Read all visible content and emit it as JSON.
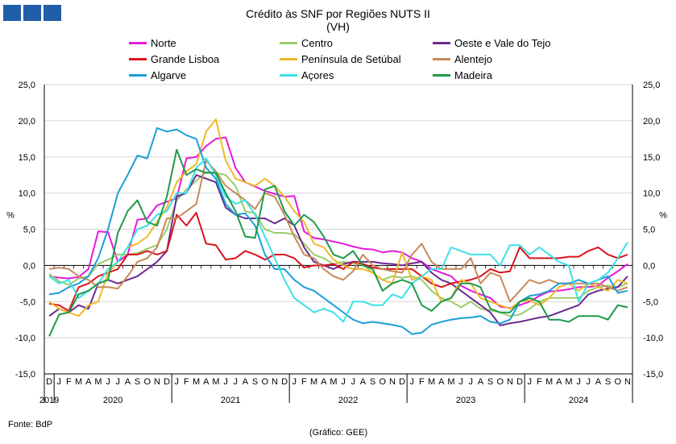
{
  "header": {
    "title": "Crédito às SNF por Regiões NUTS II",
    "subtitle": "(VH)"
  },
  "footer": {
    "source": "Fonte: BdP",
    "credit": "(Gráfico: GEE)"
  },
  "colors": {
    "logo": "#1f5fa8"
  },
  "chart_data": {
    "type": "line",
    "ylabel_left": "%",
    "ylabel_right": "%",
    "ylim": [
      -15,
      25
    ],
    "yticks": [
      -15,
      -10,
      -5,
      0,
      5,
      10,
      15,
      20,
      25
    ],
    "ytick_labels": [
      "-15,0",
      "-10,0",
      "-5,0",
      "0,0",
      "5,0",
      "10,0",
      "15,0",
      "20,0",
      "25,0"
    ],
    "grid": true,
    "legend_position": "top",
    "month_labels": [
      "D",
      "J",
      "F",
      "M",
      "A",
      "M",
      "J",
      "J",
      "A",
      "S",
      "O",
      "N",
      "D",
      "J",
      "F",
      "M",
      "A",
      "M",
      "J",
      "J",
      "A",
      "S",
      "O",
      "N",
      "D",
      "J",
      "F",
      "M",
      "A",
      "M",
      "J",
      "J",
      "A",
      "S",
      "O",
      "N",
      "D",
      "J",
      "F",
      "M",
      "A",
      "M",
      "J",
      "J",
      "A",
      "S",
      "O",
      "N",
      "D",
      "J",
      "F",
      "M",
      "A",
      "M",
      "J",
      "J",
      "A",
      "S",
      "O",
      "N"
    ],
    "year_labels": [
      {
        "label": "2019",
        "start": 0,
        "end": 0
      },
      {
        "label": "2020",
        "start": 1,
        "end": 12
      },
      {
        "label": "2021",
        "start": 13,
        "end": 24
      },
      {
        "label": "2022",
        "start": 25,
        "end": 36
      },
      {
        "label": "2023",
        "start": 37,
        "end": 48
      },
      {
        "label": "2024",
        "start": 49,
        "end": 59
      }
    ],
    "series": [
      {
        "name": "Norte",
        "color": "#e619dc",
        "values": [
          -1.5,
          -1.7,
          -1.8,
          -1.6,
          -0.5,
          4.7,
          4.6,
          0.5,
          1.5,
          6.3,
          6.5,
          8.3,
          8.8,
          9.3,
          14.8,
          15.0,
          16.5,
          17.5,
          17.7,
          13.5,
          11.5,
          10.9,
          10.3,
          9.9,
          9.5,
          9.6,
          4.7,
          3.8,
          3.6,
          3.3,
          3.0,
          2.6,
          2.3,
          2.2,
          1.8,
          2.0,
          1.8,
          1.0,
          0.5,
          -0.5,
          -1.0,
          -1.5,
          -2.8,
          -3.5,
          -4.0,
          -4.5,
          -5.7,
          -5.9,
          -5.5,
          -5.0,
          -4.2,
          -3.6,
          -3.5,
          -3.3,
          -3.0,
          -3.0,
          -2.8,
          -1.7,
          -0.8,
          0.2
        ]
      },
      {
        "name": "Centro",
        "color": "#9acd6a",
        "values": [
          -1.2,
          -2.2,
          -2.7,
          -1.8,
          -1.5,
          0.2,
          0.8,
          1.5,
          1.5,
          1.7,
          2.3,
          2.8,
          5.0,
          9.0,
          10.5,
          11.7,
          12.9,
          12.8,
          12.5,
          11.0,
          7.5,
          7.2,
          5.0,
          4.5,
          4.5,
          4.3,
          3.0,
          1.5,
          1.0,
          0.2,
          0.5,
          0.3,
          0.1,
          -1.0,
          -2.0,
          -1.5,
          -1.7,
          -1.5,
          -2.0,
          -3.5,
          -4.5,
          -5.0,
          -5.8,
          -5.0,
          -6.0,
          -6.2,
          -6.5,
          -7.0,
          -6.8,
          -6.0,
          -5.0,
          -4.5,
          -4.5,
          -4.5,
          -4.5,
          -3.5,
          -3.0,
          -2.8,
          -3.0,
          -2.5
        ]
      },
      {
        "name": "Oeste e Vale do Tejo",
        "color": "#6a2b8f",
        "values": [
          -7.0,
          -6.0,
          -6.5,
          -5.5,
          -6.0,
          -2.5,
          -2.0,
          -2.5,
          -2.0,
          -1.5,
          -0.5,
          0.5,
          2.0,
          9.5,
          10.0,
          12.5,
          12.0,
          11.5,
          8.0,
          7.0,
          6.5,
          6.5,
          6.5,
          5.8,
          6.5,
          5.5,
          2.5,
          0.5,
          0.0,
          -0.5,
          0.2,
          0.5,
          0.5,
          0.5,
          0.3,
          0.2,
          0.0,
          0.3,
          0.5,
          -1.0,
          -2.0,
          -2.5,
          -3.5,
          -4.5,
          -5.5,
          -6.5,
          -8.3,
          -8.0,
          -7.8,
          -7.5,
          -7.2,
          -7.0,
          -6.5,
          -6.0,
          -5.5,
          -4.0,
          -3.5,
          -3.2,
          -3.0,
          -1.5
        ]
      },
      {
        "name": "Grande Lisboa",
        "color": "#d9141e",
        "values": [
          -5.3,
          -5.5,
          -6.3,
          -3.0,
          -2.5,
          -1.5,
          -1.0,
          -0.5,
          1.5,
          1.5,
          2.0,
          1.5,
          2.0,
          7.0,
          5.5,
          7.3,
          3.0,
          2.8,
          0.8,
          1.0,
          2.0,
          1.5,
          0.8,
          1.5,
          1.5,
          1.0,
          -0.3,
          0.0,
          0.0,
          0.2,
          -0.5,
          0.5,
          0.2,
          -0.3,
          -0.5,
          -0.5,
          -0.5,
          -0.5,
          -1.5,
          -2.5,
          -3.0,
          -2.5,
          -2.2,
          -2.0,
          -1.5,
          -0.5,
          -1.0,
          -0.8,
          2.5,
          1.0,
          1.0,
          1.0,
          1.0,
          1.2,
          1.2,
          2.0,
          2.5,
          1.5,
          1.0,
          1.5
        ]
      },
      {
        "name": "Península de Setúbal",
        "color": "#f0b829",
        "values": [
          -5.0,
          -6.0,
          -6.5,
          -7.0,
          -5.5,
          -5.0,
          -1.0,
          0.5,
          2.5,
          3.0,
          4.0,
          6.0,
          8.0,
          11.5,
          13.0,
          14.0,
          18.5,
          20.2,
          14.5,
          12.0,
          11.5,
          11.0,
          12.0,
          11.0,
          9.5,
          7.5,
          6.0,
          3.0,
          2.5,
          0.8,
          0.0,
          -0.5,
          -0.5,
          -1.0,
          -2.0,
          -2.5,
          1.8,
          -2.0,
          -1.5,
          -2.0,
          -5.0,
          -4.5,
          -2.0,
          -2.5,
          -4.5,
          -5.0,
          -5.5,
          -6.0,
          -5.0,
          -4.8,
          -5.5,
          -4.5,
          -3.0,
          -2.5,
          -3.5,
          -2.5,
          -3.0,
          -3.5,
          -2.0,
          -2.5
        ]
      },
      {
        "name": "Alentejo",
        "color": "#c8895a",
        "values": [
          -0.5,
          -0.3,
          -0.5,
          -1.5,
          -2.0,
          -3.0,
          -3.0,
          -3.2,
          -1.5,
          0.5,
          1.0,
          2.5,
          6.5,
          6.5,
          7.5,
          8.5,
          14.5,
          13.0,
          11.0,
          10.0,
          9.0,
          7.8,
          10.0,
          9.5,
          7.0,
          4.0,
          1.5,
          1.0,
          -0.5,
          -1.5,
          -2.0,
          -0.8,
          1.5,
          0.0,
          -0.5,
          -0.8,
          -1.0,
          1.5,
          3.0,
          0.5,
          -0.5,
          -0.5,
          -0.5,
          1.0,
          -2.5,
          -1.0,
          -1.5,
          -5.0,
          -3.5,
          -2.0,
          -2.5,
          -2.0,
          -2.5,
          -2.5,
          -2.5,
          -2.5,
          -2.5,
          -3.0,
          -3.5,
          -3.0
        ]
      },
      {
        "name": "Algarve",
        "color": "#1c9fd9",
        "values": [
          -4.0,
          -3.8,
          -3.0,
          -2.5,
          -1.5,
          1.0,
          5.0,
          10.0,
          12.5,
          15.2,
          14.8,
          19.0,
          18.5,
          18.8,
          18.0,
          17.5,
          13.5,
          12.0,
          8.5,
          7.0,
          7.2,
          5.5,
          1.5,
          -0.5,
          -0.5,
          -2.0,
          -3.0,
          -3.5,
          -4.5,
          -5.5,
          -6.5,
          -7.5,
          -8.0,
          -7.8,
          -8.0,
          -8.2,
          -8.5,
          -9.5,
          -9.3,
          -8.2,
          -7.8,
          -7.5,
          -7.3,
          -7.2,
          -7.0,
          -7.8,
          -8.0,
          -7.5,
          -5.0,
          -4.2,
          -4.0,
          -3.5,
          -2.5,
          -2.5,
          -2.0,
          -2.5,
          -2.0,
          -1.5,
          -3.8,
          -3.5
        ]
      },
      {
        "name": "Açores",
        "color": "#3de0e6",
        "values": [
          -1.5,
          -2.5,
          -2.0,
          -4.5,
          -3.5,
          -2.5,
          -0.5,
          0.5,
          2.5,
          5.0,
          5.5,
          7.0,
          7.5,
          10.0,
          10.0,
          13.5,
          14.8,
          12.5,
          9.5,
          8.5,
          9.0,
          7.0,
          4.0,
          1.0,
          -2.0,
          -4.5,
          -5.5,
          -6.5,
          -6.0,
          -6.5,
          -7.8,
          -5.0,
          -5.0,
          -5.5,
          -5.5,
          -4.0,
          -4.5,
          -2.5,
          -1.5,
          -0.5,
          -0.5,
          2.5,
          2.0,
          1.5,
          1.5,
          1.5,
          0.0,
          2.8,
          2.8,
          1.5,
          2.5,
          1.5,
          0.5,
          0.0,
          -5.0,
          -2.5,
          -2.0,
          -1.0,
          1.0,
          3.2
        ]
      },
      {
        "name": "Madeira",
        "color": "#1e9a4a",
        "values": [
          -9.8,
          -6.8,
          -6.5,
          -4.0,
          -3.5,
          -2.5,
          -2.0,
          4.5,
          7.5,
          9.0,
          6.0,
          5.5,
          9.5,
          16.0,
          12.5,
          13.3,
          12.8,
          12.8,
          10.0,
          7.5,
          4.0,
          3.8,
          10.5,
          11.0,
          7.5,
          5.5,
          7.0,
          6.0,
          4.0,
          1.5,
          1.0,
          2.0,
          0.0,
          -0.5,
          -3.5,
          -2.5,
          -2.0,
          -2.5,
          -5.5,
          -6.3,
          -5.0,
          -4.5,
          -2.5,
          -2.5,
          -3.0,
          -6.0,
          -6.5,
          -6.5,
          -5.0,
          -4.5,
          -5.0,
          -7.5,
          -7.5,
          -7.8,
          -7.0,
          -7.0,
          -7.0,
          -7.5,
          -5.5,
          -5.8
        ]
      }
    ]
  }
}
